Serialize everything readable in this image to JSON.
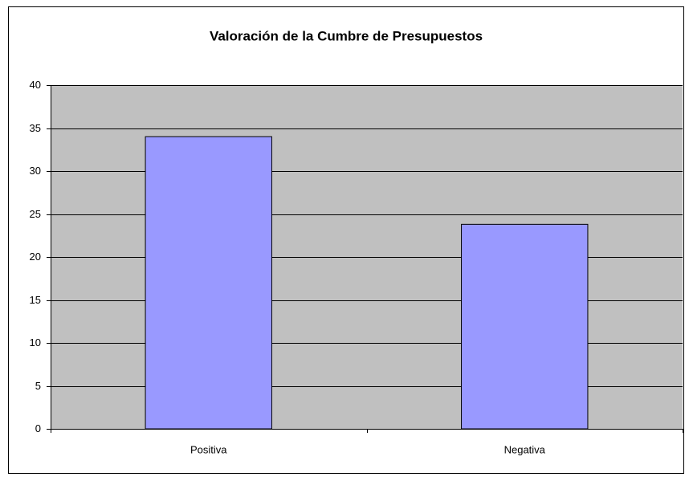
{
  "chart_data": {
    "type": "bar",
    "title": "Valoración de la Cumbre de Presupuestos",
    "categories": [
      "Positiva",
      "Negativa"
    ],
    "values": [
      34,
      23.8
    ],
    "color": "#9999ff",
    "ylim": [
      0,
      40
    ],
    "yticks": [
      0,
      5,
      10,
      15,
      20,
      25,
      30,
      35,
      40
    ],
    "grid": true
  }
}
